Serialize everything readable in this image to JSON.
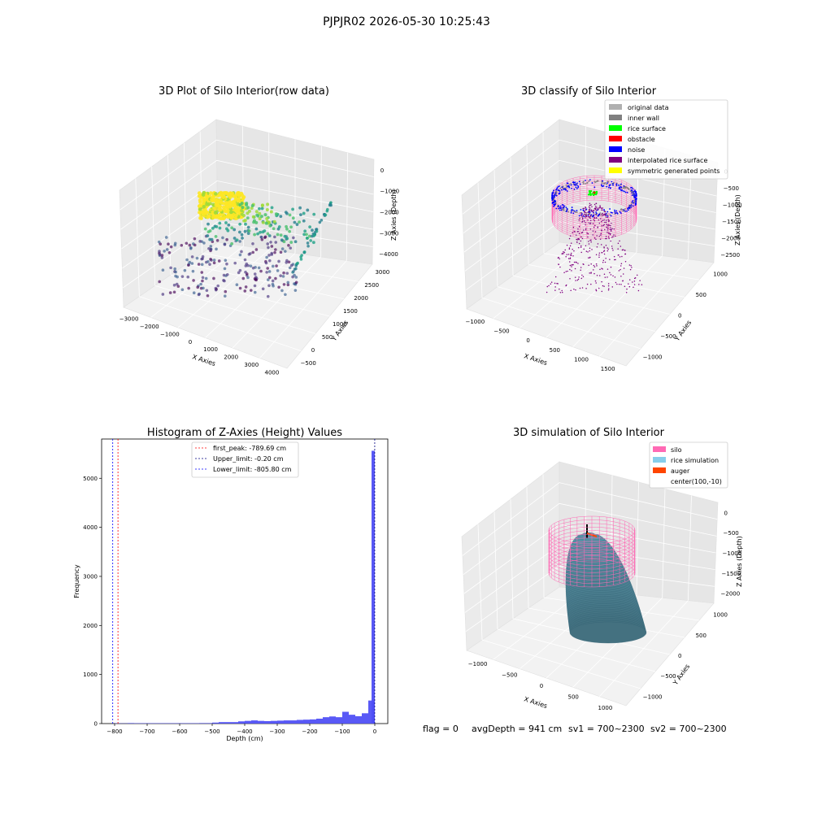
{
  "suptitle": "PJPJR02 2026-05-30 10:25:43",
  "status": {
    "flag": "flag = 0",
    "avg_depth": "avgDepth = 941 cm",
    "sv1": "sv1 = 700~2300",
    "sv2": "sv2 = 700~2300"
  },
  "colors": {
    "silo": "#ff69b4",
    "rice_simulation": "#87ceeb",
    "auger": "#ff4500",
    "original_data": "#b0b0b0",
    "inner_wall": "#808080",
    "rice_surface": "#00ff00",
    "obstacle": "#ff0000",
    "noise": "#0000ff",
    "interpolated": "#800080",
    "symmetric": "#ffff00",
    "hist_bar": "#5050f5"
  },
  "chart_data": [
    {
      "type": "scatter",
      "subtype": "3d",
      "title": "3D Plot of Silo Interior(row data)",
      "xlabel": "X Axies",
      "ylabel": "Y Axies",
      "zlabel": "Z Axies (Depth)",
      "xticks": [
        "−3000",
        "−2000",
        "−1000",
        "0",
        "1000",
        "2000",
        "3000",
        "4000"
      ],
      "yticks": [
        "−500",
        "0",
        "500",
        "1000",
        "1500",
        "2000",
        "2500",
        "3000"
      ],
      "zticks": [
        "0",
        "−1000",
        "−2000",
        "−3000",
        "−4000"
      ],
      "colormap": "viridis"
    },
    {
      "type": "scatter",
      "subtype": "3d",
      "title": "3D classify of Silo Interior",
      "xlabel": "X Axies",
      "ylabel": "Y Axies",
      "zlabel": "Z Axies (Depth)",
      "xticks": [
        "−1000",
        "−500",
        "0",
        "500",
        "1000",
        "1500"
      ],
      "yticks": [
        "−1000",
        "−500",
        "0",
        "500",
        "1000"
      ],
      "zticks": [
        "0",
        "−500",
        "−1000",
        "−1500",
        "−2000",
        "−2500"
      ],
      "legend": [
        "original data",
        "inner wall",
        "rice surface",
        "obstacle",
        "noise",
        "interpolated rice surface",
        "symmetric generated points"
      ],
      "legend_loc": "upper right"
    },
    {
      "type": "bar",
      "subtype": "histogram",
      "title": "Histogram of Z-Axies (Height) Values",
      "xlabel": "Depth (cm)",
      "ylabel": "Frequency",
      "xlim": [
        -840,
        40
      ],
      "ylim": [
        0,
        5800
      ],
      "xticks": [
        -800,
        -700,
        -600,
        -500,
        -400,
        -300,
        -200,
        -100,
        0
      ],
      "yticks": [
        0,
        1000,
        2000,
        3000,
        4000,
        5000
      ],
      "bin_width": 20,
      "bins": [
        {
          "x0": -800,
          "count": 5
        },
        {
          "x0": -780,
          "count": 5
        },
        {
          "x0": -760,
          "count": 10
        },
        {
          "x0": -740,
          "count": 8
        },
        {
          "x0": -720,
          "count": 8
        },
        {
          "x0": -700,
          "count": 8
        },
        {
          "x0": -680,
          "count": 8
        },
        {
          "x0": -660,
          "count": 8
        },
        {
          "x0": -640,
          "count": 8
        },
        {
          "x0": -620,
          "count": 8
        },
        {
          "x0": -600,
          "count": 8
        },
        {
          "x0": -580,
          "count": 8
        },
        {
          "x0": -560,
          "count": 8
        },
        {
          "x0": -540,
          "count": 10
        },
        {
          "x0": -520,
          "count": 10
        },
        {
          "x0": -500,
          "count": 20
        },
        {
          "x0": -480,
          "count": 30
        },
        {
          "x0": -460,
          "count": 30
        },
        {
          "x0": -440,
          "count": 30
        },
        {
          "x0": -420,
          "count": 45
        },
        {
          "x0": -400,
          "count": 55
        },
        {
          "x0": -380,
          "count": 65
        },
        {
          "x0": -360,
          "count": 55
        },
        {
          "x0": -340,
          "count": 50
        },
        {
          "x0": -320,
          "count": 55
        },
        {
          "x0": -300,
          "count": 60
        },
        {
          "x0": -280,
          "count": 65
        },
        {
          "x0": -260,
          "count": 65
        },
        {
          "x0": -240,
          "count": 75
        },
        {
          "x0": -220,
          "count": 80
        },
        {
          "x0": -200,
          "count": 85
        },
        {
          "x0": -180,
          "count": 100
        },
        {
          "x0": -160,
          "count": 130
        },
        {
          "x0": -140,
          "count": 145
        },
        {
          "x0": -120,
          "count": 130
        },
        {
          "x0": -100,
          "count": 240
        },
        {
          "x0": -80,
          "count": 180
        },
        {
          "x0": -60,
          "count": 150
        },
        {
          "x0": -40,
          "count": 210
        },
        {
          "x0": -20,
          "count": 470
        },
        {
          "x0": -10,
          "count": 5560
        }
      ],
      "vlines": [
        {
          "label": "first_peak: -789.69 cm",
          "x": -789.69,
          "color": "#ff0000"
        },
        {
          "label": "Upper_limit: -0.20 cm",
          "x": -0.2,
          "color": "#000080"
        },
        {
          "label": "Lower_limit: -805.80 cm",
          "x": -805.8,
          "color": "#0000ff"
        }
      ],
      "legend_loc": "upper center"
    },
    {
      "type": "area",
      "subtype": "3d-surface",
      "title": "3D simulation of Silo Interior",
      "xlabel": "X Axies",
      "ylabel": "Y Axies",
      "zlabel": "Z Axies (Depth)",
      "xticks": [
        "−1000",
        "−500",
        "0",
        "500",
        "1000"
      ],
      "yticks": [
        "−1000",
        "−500",
        "0",
        "500",
        "1000"
      ],
      "zticks": [
        "0",
        "−500",
        "−1000",
        "−1500",
        "−2000"
      ],
      "legend": [
        "silo",
        "rice simulation",
        "auger",
        "center(100,-10)"
      ],
      "legend_loc": "upper right"
    }
  ]
}
